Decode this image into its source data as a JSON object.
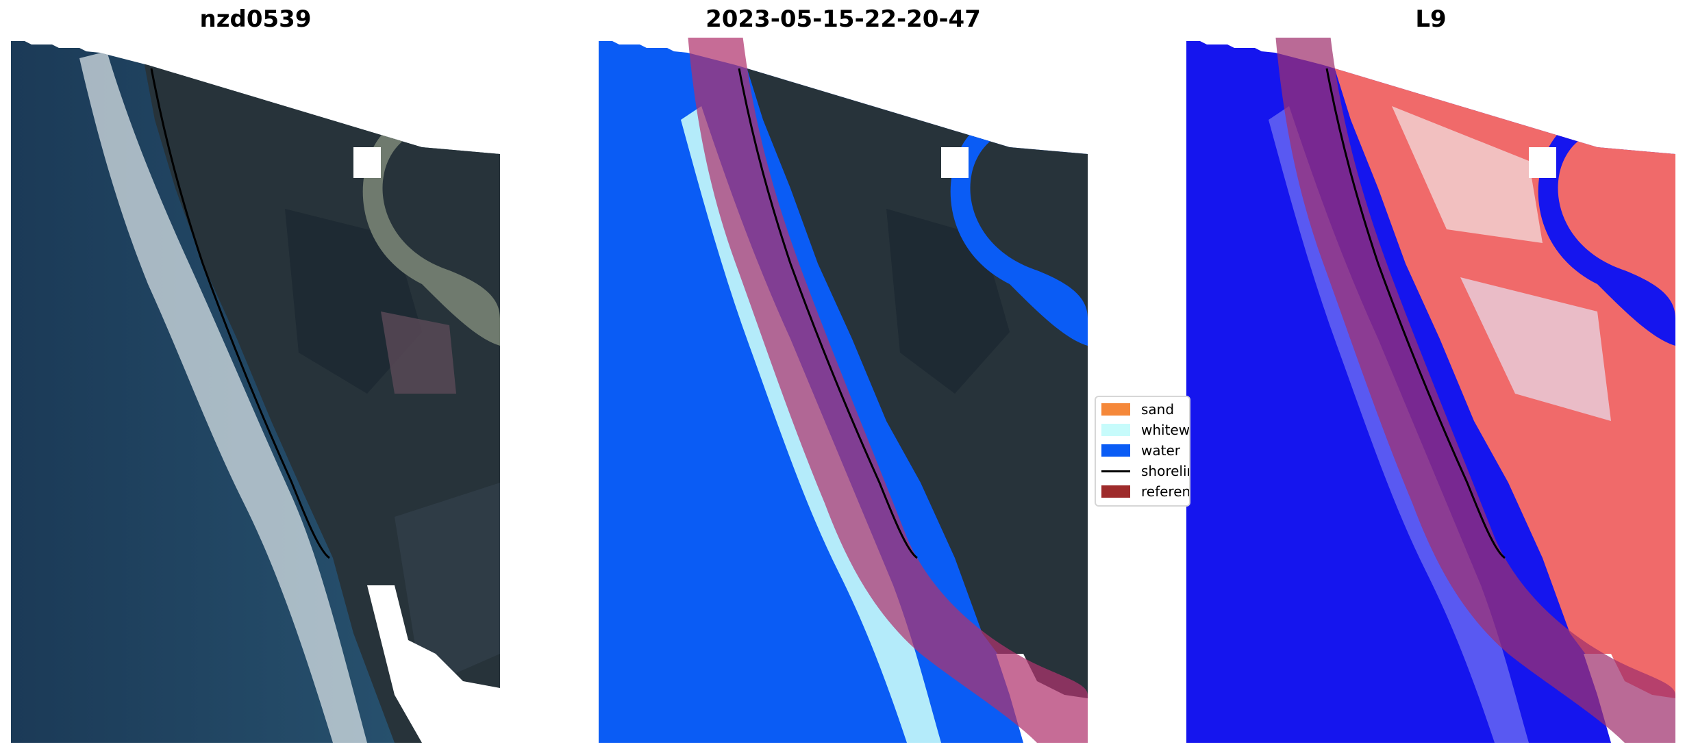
{
  "panels": [
    {
      "title": "nzd0539",
      "kind": "rgb"
    },
    {
      "title": "2023-05-15-22-20-47",
      "kind": "classified"
    },
    {
      "title": "L9",
      "kind": "index"
    }
  ],
  "legend": {
    "items": [
      {
        "label": "sand",
        "color": "#f5883a",
        "type": "patch"
      },
      {
        "label": "whitewater",
        "color": "#c7fbfb",
        "type": "patch"
      },
      {
        "label": "water",
        "color": "#0a5cf5",
        "type": "patch"
      },
      {
        "label": "shoreline",
        "color": "#000000",
        "type": "line"
      },
      {
        "label": "reference shoreline buffer",
        "color": "#9e2b2b",
        "type": "patch"
      }
    ]
  },
  "colors": {
    "ocean_rgb": "#1d3f5e",
    "land_rgb": "#26323b",
    "river_rgb": "#6f7a6e",
    "surf": "#e8eef0",
    "water_class": "#0a5cf5",
    "whitewater_class": "#c7fbfb",
    "buffer": "#b0336e",
    "index_low": "#1010f0",
    "index_high": "#f05050"
  }
}
